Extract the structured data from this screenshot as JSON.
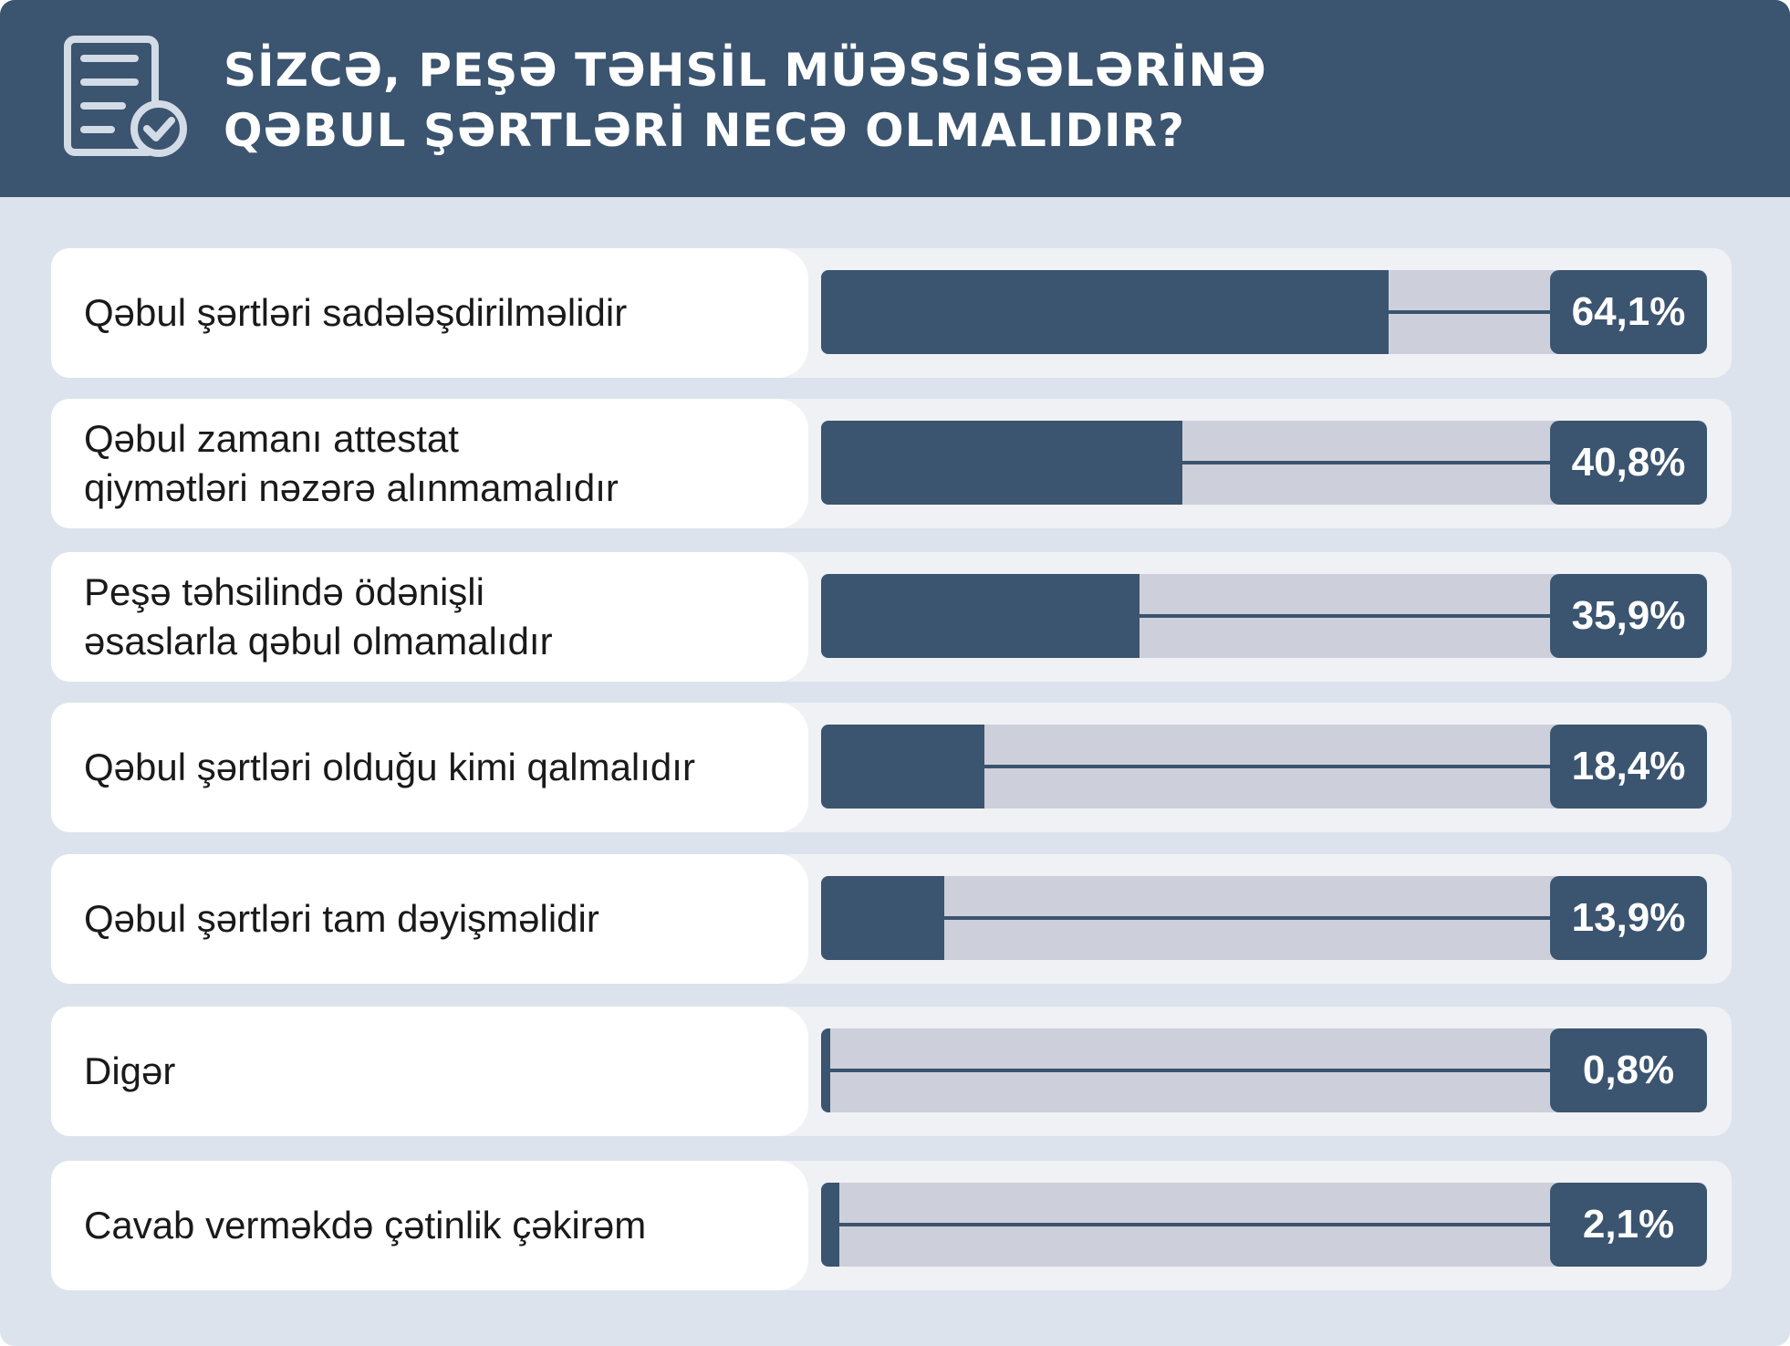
{
  "header": {
    "title_lines": [
      "SİZCƏ, PEŞƏ TƏHSİL MÜƏSSİSƏLƏRİNƏ",
      "QƏBUL ŞƏRTLƏRİ NECƏ OLMALIDIR?"
    ],
    "icon": "document-checkmark-icon"
  },
  "chart_data": {
    "type": "bar",
    "orientation": "horizontal",
    "title": "SİZCƏ, PEŞƏ TƏHSİL MÜƏSSİSƏLƏRİNƏ QƏBUL ŞƏRTLƏRİ NECƏ OLMALIDIR?",
    "categories": [
      "Qəbul şərtləri sadələşdirilməlidir",
      "Qəbul zamanı attestat qiymətləri nəzərə alınmamalıdır",
      "Peşə təhsilində ödənişli əsaslarla qəbul olmamalıdır",
      "Qəbul şərtləri olduğu kimi qalmalıdır",
      "Qəbul şərtləri tam dəyişməlidir",
      "Digər",
      "Cavab verməkdə çətinlik çəkirəm"
    ],
    "values": [
      64.1,
      40.8,
      35.9,
      18.4,
      13.9,
      0.8,
      2.1
    ],
    "value_labels": [
      "64,1%",
      "40,8%",
      "35,9%",
      "18,4%",
      "13,9%",
      "0,8%",
      "2,1%"
    ],
    "label_lines": [
      [
        "Qəbul şərtləri sadələşdirilməlidir"
      ],
      [
        "Qəbul zamanı attestat",
        "qiymətləri nəzərə alınmamalıdır"
      ],
      [
        "Peşə təhsilində ödənişli",
        "əsaslarla qəbul olmamalıdır"
      ],
      [
        "Qəbul şərtləri olduğu kimi qalmalıdır"
      ],
      [
        "Qəbul şərtləri tam dəyişməlidir"
      ],
      [
        "Digər"
      ],
      [
        "Cavab verməkdə çətinlik çəkirəm"
      ]
    ],
    "xlim": [
      0,
      100
    ],
    "unit": "%",
    "colors": {
      "bar": "#3b546f",
      "track": "#cdd0da",
      "background": "#dce3ec"
    }
  }
}
